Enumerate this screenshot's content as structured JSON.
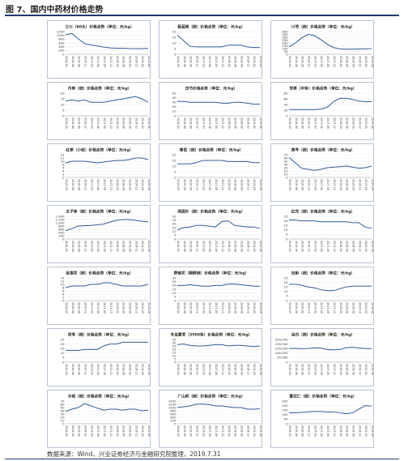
{
  "figure": {
    "title": "图 7、国内中药材价格走势",
    "source": "数据来源：Wind，兴业证券经济与金融研究院整理，2019.7.31",
    "line_color": "#2f5d9a"
  },
  "chart_data": [
    {
      "type": "line",
      "title": "三七（80头）价格走势（单位：元/kg）",
      "yticks": [
        "0",
        "200",
        "400",
        "600",
        "800",
        "1000",
        "1200"
      ],
      "ylim": [
        0,
        1200
      ],
      "x": [
        "2016-03",
        "2016-06",
        "2016-09",
        "2016-12",
        "2017-03",
        "2017-06",
        "2017-09",
        "2017-12",
        "2018-03",
        "2018-06",
        "2018-09",
        "2018-12",
        "2019-03",
        "2019-06"
      ],
      "values": [
        1040,
        1100,
        820,
        560,
        500,
        440,
        380,
        340,
        320,
        320,
        300,
        300,
        300,
        310
      ]
    },
    {
      "type": "line",
      "title": "板蓝根（统）价格走势（单位：元/kg）",
      "yticks": [
        "0",
        "5",
        "10",
        "15",
        "20"
      ],
      "ylim": [
        0,
        20
      ],
      "x": [
        "2016-03",
        "2016-06",
        "2016-09",
        "2016-12",
        "2017-03",
        "2017-06",
        "2017-09",
        "2017-12",
        "2018-03",
        "2018-06",
        "2018-09",
        "2018-12",
        "2019-03",
        "2019-06"
      ],
      "values": [
        17,
        12,
        7,
        6.5,
        6.5,
        6.5,
        6.5,
        6.5,
        8,
        8,
        8,
        6.5,
        6,
        6
      ]
    },
    {
      "type": "line",
      "title": "川芎（统）价格走势（单位：元/kg）",
      "yticks": [
        "0",
        "50",
        "100",
        "150",
        "200",
        "250",
        "300",
        "350",
        "400"
      ],
      "ylim": [
        0,
        400
      ],
      "x": [
        "2016-03",
        "2016-06",
        "2016-09",
        "2016-12",
        "2017-03",
        "2017-06",
        "2017-09",
        "2017-12",
        "2018-03",
        "2018-06",
        "2018-09",
        "2018-12",
        "2019-03",
        "2019-06"
      ],
      "values": [
        130,
        200,
        290,
        350,
        330,
        260,
        180,
        120,
        95,
        90,
        90,
        95,
        95,
        100
      ]
    },
    {
      "type": "line",
      "title": "丹参（统）价格走势（单位：元/kg）",
      "yticks": [
        "0",
        "5",
        "10",
        "15",
        "20"
      ],
      "ylim": [
        0,
        20
      ],
      "x": [
        "2016-03",
        "2016-06",
        "2016-09",
        "2016-12",
        "2017-03",
        "2017-06",
        "2017-09",
        "2017-12",
        "2018-03",
        "2018-06",
        "2018-09",
        "2018-12",
        "2019-03",
        "2019-06"
      ],
      "values": [
        13,
        14,
        13,
        14,
        12,
        12,
        12,
        13,
        14,
        15,
        16,
        17,
        15,
        12
      ]
    },
    {
      "type": "line",
      "title": "白芍价格走势（单位：元/kg）",
      "yticks": [
        "0",
        "10",
        "20",
        "30",
        "40",
        "50"
      ],
      "ylim": [
        0,
        50
      ],
      "x": [
        "2016-03",
        "2016-06",
        "2016-09",
        "2016-12",
        "2017-03",
        "2017-06",
        "2017-09",
        "2017-12",
        "2018-03",
        "2018-06",
        "2018-09",
        "2018-12",
        "2019-03",
        "2019-06"
      ],
      "values": [
        32,
        32,
        30,
        30,
        30,
        30,
        30,
        28,
        28,
        30,
        30,
        28,
        26,
        26
      ]
    },
    {
      "type": "line",
      "title": "党参（中条）价格走势（单位：元/kg）",
      "yticks": [
        "0",
        "20",
        "40",
        "60",
        "80"
      ],
      "ylim": [
        0,
        80
      ],
      "x": [
        "2016-03",
        "2016-06",
        "2016-09",
        "2016-12",
        "2017-03",
        "2017-06",
        "2017-09",
        "2017-12",
        "2018-03",
        "2018-06",
        "2018-09",
        "2018-12",
        "2019-03",
        "2019-06"
      ],
      "values": [
        22,
        22,
        22,
        22,
        22,
        24,
        30,
        50,
        62,
        62,
        58,
        52,
        50,
        50
      ]
    },
    {
      "type": "line",
      "title": "红参（小枝）价格走势（单位：元/kg）",
      "yticks": [
        "0",
        "2",
        "4",
        "6",
        "8",
        "10",
        "12",
        "14"
      ],
      "ylim": [
        0,
        14
      ],
      "x": [
        "2016-03",
        "2016-06",
        "2016-09",
        "2016-12",
        "2017-03",
        "2017-06",
        "2017-09",
        "2017-12",
        "2018-03",
        "2018-06",
        "2018-09",
        "2018-12",
        "2019-03",
        "2019-06"
      ],
      "values": [
        9,
        10,
        10,
        10,
        9.5,
        9,
        9.5,
        10,
        10.5,
        10.5,
        11,
        12,
        12,
        11
      ]
    },
    {
      "type": "line",
      "title": "黄芪（统）价格走势（单位：元/kg）",
      "yticks": [
        "0",
        "5",
        "10",
        "15",
        "20"
      ],
      "ylim": [
        0,
        20
      ],
      "x": [
        "2016-03",
        "2016-06",
        "2016-09",
        "2016-12",
        "2017-03",
        "2017-06",
        "2017-09",
        "2017-12",
        "2018-03",
        "2018-06",
        "2018-09",
        "2018-12",
        "2019-03",
        "2019-06"
      ],
      "values": [
        12,
        12,
        12,
        13,
        15,
        15,
        15,
        15,
        14,
        14,
        14,
        14,
        13,
        13
      ]
    },
    {
      "type": "line",
      "title": "黄芩（统）价格走势（单位：元/kg）",
      "yticks": [
        "0",
        "10",
        "20",
        "30",
        "40",
        "50",
        "60",
        "70"
      ],
      "ylim": [
        0,
        70
      ],
      "x": [
        "2016-03",
        "2016-06",
        "2016-09",
        "2016-12",
        "2017-03",
        "2017-06",
        "2017-09",
        "2017-12",
        "2018-03",
        "2018-06",
        "2018-09",
        "2018-12",
        "2019-03",
        "2019-06"
      ],
      "values": [
        62,
        45,
        28,
        25,
        22,
        25,
        30,
        32,
        33,
        35,
        32,
        28,
        30,
        35
      ]
    },
    {
      "type": "line",
      "title": "太子参（统）价格走势（单位：元/kg）",
      "yticks": [
        "0",
        "200",
        "400",
        "600",
        "800",
        "1,000",
        "1,200",
        "1,400"
      ],
      "ylim": [
        0,
        1400
      ],
      "x": [
        "2016-03",
        "2016-06",
        "2016-09",
        "2016-12",
        "2017-03",
        "2017-06",
        "2017-09",
        "2017-12",
        "2018-03",
        "2018-06",
        "2018-09",
        "2018-12",
        "2019-03",
        "2019-06"
      ],
      "values": [
        520,
        640,
        800,
        820,
        840,
        880,
        920,
        1050,
        1150,
        1200,
        1200,
        1150,
        1100,
        1050
      ]
    },
    {
      "type": "line",
      "title": "两面针（统）价格走势（单位：元/kg）",
      "yticks": [
        "0",
        "5",
        "10",
        "15",
        "20",
        "25",
        "30"
      ],
      "ylim": [
        0,
        30
      ],
      "x": [
        "2016-03",
        "2016-06",
        "2016-09",
        "2016-12",
        "2017-03",
        "2017-06",
        "2017-09",
        "2017-12",
        "2018-03",
        "2018-06",
        "2018-09",
        "2018-12",
        "2019-03",
        "2019-06"
      ],
      "values": [
        12,
        15,
        16,
        18,
        18,
        17,
        16,
        23,
        24,
        18,
        17,
        16,
        16,
        14
      ]
    },
    {
      "type": "line",
      "title": "红花（统）价格走势（单位：元/kg）",
      "yticks": [
        "0",
        "5",
        "10",
        "15",
        "20",
        "25"
      ],
      "ylim": [
        0,
        25
      ],
      "x": [
        "2016-03",
        "2016-06",
        "2016-09",
        "2016-12",
        "2017-03",
        "2017-06",
        "2017-09",
        "2017-12",
        "2018-03",
        "2018-06",
        "2018-09",
        "2018-12",
        "2019-03",
        "2019-06"
      ],
      "values": [
        21,
        21,
        20,
        20,
        20,
        19,
        19,
        19,
        19,
        19,
        18,
        18,
        13,
        12
      ]
    },
    {
      "type": "line",
      "title": "金银花（统）价格走势（单位：元/kg）",
      "yticks": [
        "0",
        "2",
        "4",
        "6",
        "8",
        "10",
        "12",
        "14"
      ],
      "ylim": [
        0,
        14
      ],
      "x": [
        "2016-03",
        "2016-06",
        "2016-09",
        "2016-12",
        "2017-03",
        "2017-06",
        "2017-09",
        "2017-12",
        "2018-03",
        "2018-06",
        "2018-09",
        "2018-12",
        "2019-03",
        "2019-06"
      ],
      "values": [
        8,
        9,
        9,
        9,
        10,
        10,
        11,
        11,
        10,
        9,
        9,
        9,
        9,
        10
      ]
    },
    {
      "type": "line",
      "title": "野菊花（朝鲜统）价格走势（单位：元/kg）",
      "yticks": [
        "0",
        "5",
        "10",
        "15",
        "20",
        "25",
        "30"
      ],
      "ylim": [
        0,
        30
      ],
      "x": [
        "2016-03",
        "2016-06",
        "2016-09",
        "2016-12",
        "2017-03",
        "2017-06",
        "2017-09",
        "2017-12",
        "2018-03",
        "2018-06",
        "2018-09",
        "2018-12",
        "2019-03",
        "2019-06"
      ],
      "values": [
        20,
        20,
        21,
        20,
        19,
        19,
        20,
        20,
        22,
        22,
        21,
        20,
        19,
        19
      ]
    },
    {
      "type": "line",
      "title": "石斛（统）价格走势（单位：元/kg）",
      "yticks": [
        "0",
        "5",
        "10",
        "15",
        "20",
        "25"
      ],
      "ylim": [
        0,
        25
      ],
      "x": [
        "2016-03",
        "2016-06",
        "2016-09",
        "2016-12",
        "2017-03",
        "2017-06",
        "2017-09",
        "2017-12",
        "2018-03",
        "2018-06",
        "2018-09",
        "2018-12",
        "2019-03",
        "2019-06"
      ],
      "values": [
        18,
        18,
        17,
        15,
        14,
        12,
        11,
        11,
        13,
        15,
        16,
        16,
        16,
        16
      ]
    },
    {
      "type": "line",
      "title": "茯苓（统）价格走势（单位：元/kg）",
      "yticks": [
        "0",
        "5",
        "10",
        "15",
        "20",
        "25"
      ],
      "ylim": [
        0,
        25
      ],
      "x": [
        "2016-03",
        "2016-06",
        "2016-09",
        "2016-12",
        "2017-03",
        "2017-06",
        "2017-09",
        "2017-12",
        "2018-03",
        "2018-06",
        "2018-09",
        "2018-12",
        "2019-03",
        "2019-06"
      ],
      "values": [
        13,
        13,
        13,
        14,
        14,
        14,
        18,
        20,
        20,
        22,
        22,
        22,
        22,
        22
      ]
    },
    {
      "type": "line",
      "title": "冬虫夏草（3500条）价格走势（单位：元/kg）",
      "yticks": [
        "0",
        "5",
        "10",
        "15",
        "20",
        "25",
        "30",
        "35"
      ],
      "ylim": [
        0,
        35
      ],
      "x": [
        "2016-03",
        "2016-06",
        "2016-09",
        "2016-12",
        "2017-03",
        "2017-06",
        "2017-09",
        "2017-12",
        "2018-03",
        "2018-06",
        "2018-09",
        "2018-12",
        "2019-03",
        "2019-06"
      ],
      "values": [
        27,
        28,
        26,
        25,
        25,
        26,
        27,
        27,
        25,
        26,
        26,
        25,
        24,
        25
      ]
    },
    {
      "type": "line",
      "title": "当归（统）价格走势（单位：元/kg）",
      "yticks": [
        "0",
        "50,000",
        "100,000",
        "150,000",
        "200,000",
        "250,000"
      ],
      "ylim": [
        0,
        250000
      ],
      "x": [
        "2016-03",
        "2016-06",
        "2016-09",
        "2016-12",
        "2017-03",
        "2017-06",
        "2017-09",
        "2017-12",
        "2018-03",
        "2018-06",
        "2018-09",
        "2018-12",
        "2019-03",
        "2019-06"
      ],
      "values": [
        150000,
        152000,
        148000,
        150000,
        158000,
        155000,
        140000,
        135000,
        140000,
        160000,
        165000,
        155000,
        150000,
        150000
      ]
    },
    {
      "type": "line",
      "title": "水蛭（统）价格走势（单位：元/kg）",
      "yticks": [
        "0",
        "10",
        "20",
        "30",
        "40",
        "50",
        "60",
        "70"
      ],
      "ylim": [
        0,
        70
      ],
      "x": [
        "2016-03",
        "2016-06",
        "2016-09",
        "2016-12",
        "2017-03",
        "2017-06",
        "2017-09",
        "2017-12",
        "2018-03",
        "2018-06",
        "2018-09",
        "2018-12",
        "2019-03",
        "2019-06"
      ],
      "values": [
        38,
        45,
        50,
        62,
        55,
        48,
        42,
        45,
        45,
        42,
        45,
        45,
        40,
        42
      ]
    },
    {
      "type": "line",
      "title": "广山药（统）价格走势（单位：元/kg）",
      "yticks": [
        "0",
        "200",
        "400",
        "600",
        "800",
        "1000",
        "1200",
        "1400"
      ],
      "ylim": [
        0,
        1400
      ],
      "x": [
        "2016-03",
        "2016-06",
        "2016-09",
        "2016-12",
        "2017-03",
        "2017-06",
        "2017-09",
        "2017-12",
        "2018-03",
        "2018-06",
        "2018-09",
        "2018-12",
        "2019-03",
        "2019-06"
      ],
      "values": [
        1000,
        1050,
        1100,
        1200,
        1220,
        1180,
        1100,
        1100,
        1050,
        1000,
        1000,
        900,
        900,
        920
      ]
    },
    {
      "type": "line",
      "title": "薏苡仁（统）价格走势（单位：元/kg）",
      "yticks": [
        "0",
        "50",
        "100",
        "150",
        "200",
        "250"
      ],
      "ylim": [
        0,
        250
      ],
      "x": [
        "2016-03",
        "2016-06",
        "2016-09",
        "2016-12",
        "2017-03",
        "2017-06",
        "2017-09",
        "2017-12",
        "2018-03",
        "2018-06",
        "2018-09",
        "2018-12",
        "2019-03",
        "2019-06"
      ],
      "values": [
        120,
        120,
        125,
        130,
        135,
        135,
        130,
        130,
        120,
        110,
        120,
        160,
        200,
        195
      ]
    }
  ]
}
